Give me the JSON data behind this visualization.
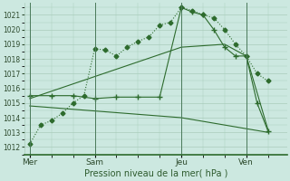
{
  "bg_color": "#cce8e0",
  "grid_color": "#aaccbb",
  "line_color": "#2d6b2d",
  "xlabel": "Pression niveau de la mer( hPa )",
  "ylim": [
    1011.5,
    1021.8
  ],
  "yticks": [
    1012,
    1013,
    1014,
    1015,
    1016,
    1017,
    1018,
    1019,
    1020,
    1021
  ],
  "xtick_labels": [
    "Mer",
    "Sam",
    "Jeu",
    "Ven"
  ],
  "xtick_positions": [
    0,
    24,
    56,
    80
  ],
  "vline_positions": [
    0,
    24,
    56,
    80
  ],
  "xlim": [
    -2,
    95
  ],
  "series1_dotted_diamond": {
    "x": [
      0,
      4,
      8,
      12,
      16,
      20,
      24,
      28,
      32,
      36,
      40,
      44,
      48,
      52,
      56,
      60,
      64,
      68,
      72,
      76,
      80,
      84,
      88
    ],
    "y": [
      1012.2,
      1013.5,
      1013.8,
      1014.3,
      1015.0,
      1015.5,
      1018.7,
      1018.6,
      1018.2,
      1018.8,
      1019.2,
      1019.5,
      1020.3,
      1020.5,
      1021.5,
      1021.3,
      1021.0,
      1020.8,
      1020.0,
      1019.0,
      1018.2,
      1017.0,
      1016.5
    ]
  },
  "series2_solid_plus": {
    "x": [
      0,
      8,
      16,
      24,
      32,
      40,
      48,
      56,
      60,
      64,
      68,
      72,
      76,
      80,
      84,
      88
    ],
    "y": [
      1015.5,
      1015.5,
      1015.5,
      1015.3,
      1015.4,
      1015.4,
      1015.4,
      1021.5,
      1021.2,
      1021.0,
      1020.0,
      1018.8,
      1018.2,
      1018.2,
      1015.0,
      1013.1
    ]
  },
  "series3_solid_straight": {
    "x": [
      0,
      56,
      72,
      80,
      88
    ],
    "y": [
      1015.3,
      1018.8,
      1019.0,
      1018.2,
      1013.2
    ]
  },
  "series4_flat_decline": {
    "x": [
      0,
      56,
      88
    ],
    "y": [
      1014.8,
      1014.0,
      1013.0
    ]
  }
}
